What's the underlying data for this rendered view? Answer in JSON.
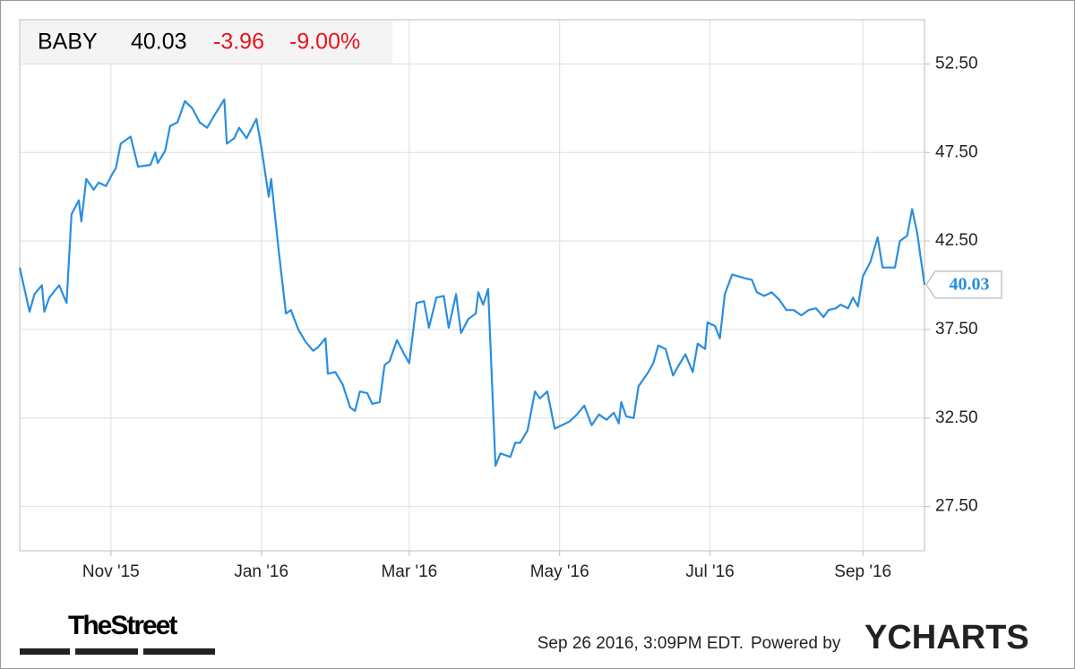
{
  "chart_data": {
    "type": "line",
    "header": {
      "ticker": "BABY",
      "price": "40.03",
      "change": "-3.96",
      "change_pct": "-9.00%"
    },
    "series": [
      {
        "name": "BABY",
        "color": "#2a8ee0",
        "x": [
          0,
          4,
          6,
          9,
          10,
          12,
          16,
          19,
          21,
          24,
          25,
          27,
          30,
          32,
          35,
          38,
          39,
          41,
          45,
          48,
          53,
          55,
          56,
          59,
          61,
          64,
          67,
          70,
          73,
          76,
          79,
          83,
          84,
          87,
          89,
          92,
          96,
          98,
          101,
          102,
          105,
          108,
          110,
          113,
          116,
          119,
          121,
          124,
          125,
          128,
          131,
          134,
          136,
          138,
          141,
          143,
          146,
          148,
          150,
          153,
          156,
          158,
          161,
          164,
          166,
          169,
          172,
          174,
          177,
          179,
          182,
          185,
          186,
          188,
          190,
          193,
          195,
          199,
          201,
          203,
          206,
          209,
          211,
          214,
          217,
          220,
          223,
          226,
          229,
          232,
          235,
          238,
          241,
          243,
          244,
          246,
          249,
          251,
          255,
          257,
          259,
          262,
          265,
          267,
          270,
          273,
          275,
          278,
          279,
          282,
          284,
          286,
          289,
          294,
          297,
          299,
          302,
          305,
          308,
          311,
          314,
          317,
          320,
          323,
          326,
          328,
          331,
          333,
          336,
          338,
          340,
          342,
          345,
          348,
          350,
          354,
          355,
          357,
          360,
          362,
          364,
          367
        ],
        "values": [
          41,
          38.5,
          39.5,
          40,
          38.5,
          39.3,
          40,
          39,
          44,
          44.8,
          43.6,
          46,
          45.4,
          45.8,
          45.6,
          46.4,
          46.6,
          48,
          48.4,
          46.7,
          46.8,
          47.5,
          46.9,
          47.6,
          49,
          49.2,
          50.4,
          50,
          49.2,
          48.9,
          49.6,
          50.5,
          48,
          48.3,
          48.9,
          48.3,
          49.4,
          47.8,
          45,
          46,
          42,
          38.4,
          38.6,
          37.5,
          36.8,
          36.3,
          36.5,
          37,
          35,
          35.1,
          34.4,
          33.1,
          32.9,
          34,
          33.9,
          33.3,
          33.4,
          35.5,
          35.7,
          36.9,
          36.1,
          35.6,
          39,
          39.1,
          37.6,
          39.3,
          39.4,
          37.6,
          39.5,
          37.3,
          38.1,
          38.4,
          39.6,
          38.9,
          39.8,
          29.8,
          30.5,
          30.3,
          31.1,
          31.1,
          31.8,
          34,
          33.6,
          34,
          31.9,
          32.1,
          32.3,
          32.7,
          33.2,
          32.1,
          32.7,
          32.4,
          32.8,
          32.2,
          33.4,
          32.6,
          32.5,
          34.3,
          35.1,
          35.6,
          36.6,
          36.4,
          34.9,
          35.4,
          36.1,
          35.1,
          36.7,
          36.4,
          37.9,
          37.7,
          37,
          39.5,
          40.6,
          40.4,
          40.3,
          39.6,
          39.4,
          39.6,
          39.2,
          38.6,
          38.6,
          38.3,
          38.6,
          38.7,
          38.2,
          38.6,
          38.7,
          38.9,
          38.7,
          39.3,
          38.8,
          40.5,
          41.3,
          42.7,
          41,
          41,
          41,
          42.5,
          42.8,
          44.3,
          43,
          40.03
        ]
      }
    ],
    "xlim": [
      0,
      367
    ],
    "xticks": [
      {
        "value": 37,
        "label": "Nov '15"
      },
      {
        "value": 98,
        "label": "Jan '16"
      },
      {
        "value": 158,
        "label": "Mar '16"
      },
      {
        "value": 219,
        "label": "May '16"
      },
      {
        "value": 280,
        "label": "Jul '16"
      },
      {
        "value": 342,
        "label": "Sep '16"
      }
    ],
    "ylim": [
      25,
      55
    ],
    "yticks": [
      {
        "value": 27.5,
        "label": "27.50"
      },
      {
        "value": 32.5,
        "label": "32.50"
      },
      {
        "value": 37.5,
        "label": "37.50"
      },
      {
        "value": 42.5,
        "label": "42.50"
      },
      {
        "value": 47.5,
        "label": "47.50"
      },
      {
        "value": 52.5,
        "label": "52.50"
      }
    ],
    "grid": true
  },
  "footer": {
    "brand": "TheStreet",
    "timestamp": "Sep 26 2016, 3:09PM EDT.",
    "powered": "Powered by",
    "logo": "YCHARTS"
  }
}
